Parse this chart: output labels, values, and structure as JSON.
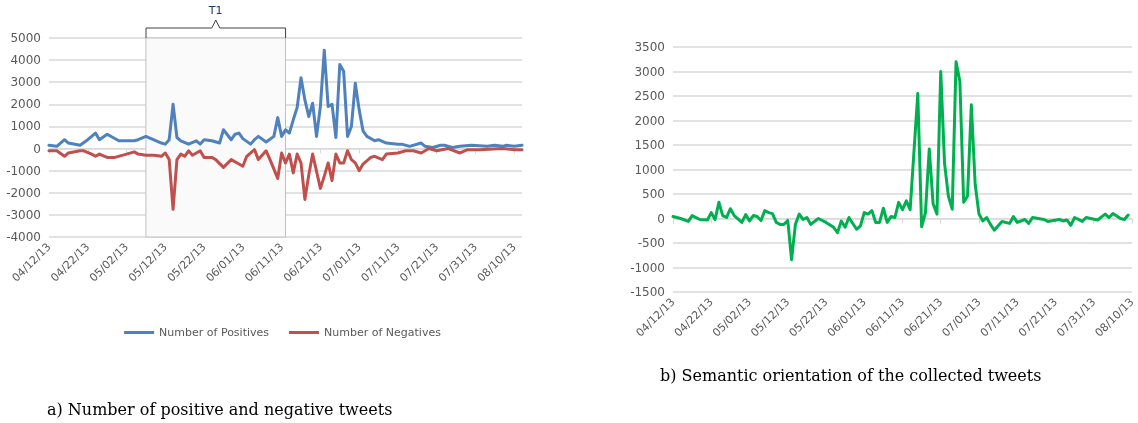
{
  "chart_data": [
    {
      "type": "line",
      "legend": "bottom",
      "grid": "y",
      "marker": "none",
      "line_style": "solid",
      "xlim": [
        "--04-12",
        "--08-12"
      ],
      "xticks": [
        {
          "value": "--04-12",
          "label": "04/12/13"
        },
        {
          "value": "--04-22",
          "label": "04/22/13"
        },
        {
          "value": "--05-02",
          "label": "05/02/13"
        },
        {
          "value": "--05-12",
          "label": "05/12/13"
        },
        {
          "value": "--05-22",
          "label": "05/22/13"
        },
        {
          "value": "--06-01",
          "label": "06/01/13"
        },
        {
          "value": "--06-11",
          "label": "06/11/13"
        },
        {
          "value": "--06-21",
          "label": "06/21/13"
        },
        {
          "value": "--07-01",
          "label": "07/01/13"
        },
        {
          "value": "--07-11",
          "label": "07/11/13"
        },
        {
          "value": "--07-21",
          "label": "07/21/13"
        },
        {
          "value": "--07-31",
          "label": "07/31/13"
        },
        {
          "value": "--08-10",
          "label": "08/10/13"
        }
      ],
      "ylim": [
        -4000,
        5000
      ],
      "yticks": [
        -4000,
        -3000,
        -2000,
        -1000,
        0,
        1000,
        2000,
        3000,
        4000,
        5000
      ],
      "bands": [
        {
          "axis": "x",
          "from": "--05-07",
          "to": "--06-12",
          "label": "T1",
          "color": "#fafafa"
        }
      ],
      "annotations": [
        "a) Number of positive and negative tweets"
      ],
      "series": [
        {
          "name": "Number of Positives",
          "color": "#4f81bd",
          "x": [
            "--04-12",
            "--04-14",
            "--04-16",
            "--04-17",
            "--04-20",
            "--04-22",
            "--04-24",
            "--04-25",
            "--04-27",
            "--04-30",
            "--05-04",
            "--05-05",
            "--05-07",
            "--05-11",
            "--05-12",
            "--05-13",
            "--05-14",
            "--05-15",
            "--05-16",
            "--05-18",
            "--05-20",
            "--05-21",
            "--05-22",
            "--05-24",
            "--05-26",
            "--05-27",
            "--05-29",
            "--05-30",
            "--05-31",
            "--06-01",
            "--06-03",
            "--06-04",
            "--06-05",
            "--06-07",
            "--06-09",
            "--06-10",
            "--06-11",
            "--06-12",
            "--06-13",
            "--06-14",
            "--06-15",
            "--06-16",
            "--06-17",
            "--06-18",
            "--06-19",
            "--06-20",
            "--06-21",
            "--06-22",
            "--06-23",
            "--06-24",
            "--06-25",
            "--06-26",
            "--06-27",
            "--06-28",
            "--06-29",
            "--06-30",
            "--07-01",
            "--07-02",
            "--07-03",
            "--07-05",
            "--07-06",
            "--07-08",
            "--07-11",
            "--07-12",
            "--07-14",
            "--07-17",
            "--07-18",
            "--07-20",
            "--07-22",
            "--07-23",
            "--07-25",
            "--07-27",
            "--07-30",
            "--08-03",
            "--08-05",
            "--08-07",
            "--08-08",
            "--08-10",
            "--08-12"
          ],
          "values": [
            150,
            100,
            400,
            250,
            150,
            400,
            700,
            400,
            650,
            350,
            350,
            400,
            550,
            250,
            200,
            400,
            2000,
            500,
            350,
            200,
            350,
            200,
            400,
            350,
            250,
            850,
            400,
            650,
            700,
            450,
            200,
            400,
            550,
            300,
            550,
            1400,
            550,
            850,
            700,
            1300,
            1850,
            3200,
            2200,
            1450,
            2050,
            550,
            1900,
            4450,
            1900,
            2000,
            500,
            3800,
            3500,
            550,
            1000,
            2950,
            1750,
            800,
            550,
            350,
            400,
            250,
            200,
            200,
            100,
            250,
            100,
            50,
            150,
            150,
            50,
            100,
            150,
            100,
            150,
            100,
            150,
            100,
            150
          ]
        },
        {
          "name": "Number of Negatives",
          "color": "#c0504d",
          "x": [
            "--04-12",
            "--04-14",
            "--04-16",
            "--04-17",
            "--04-20",
            "--04-21",
            "--04-23",
            "--04-24",
            "--04-25",
            "--04-27",
            "--04-29",
            "--05-02",
            "--05-04",
            "--05-05",
            "--05-07",
            "--05-09",
            "--05-11",
            "--05-12",
            "--05-13",
            "--05-14",
            "--05-15",
            "--05-16",
            "--05-17",
            "--05-18",
            "--05-19",
            "--05-21",
            "--05-22",
            "--05-24",
            "--05-25",
            "--05-27",
            "--05-29",
            "--05-31",
            "--06-01",
            "--06-02",
            "--06-04",
            "--06-05",
            "--06-07",
            "--06-08",
            "--06-10",
            "--06-11",
            "--06-12",
            "--06-13",
            "--06-14",
            "--06-15",
            "--06-16",
            "--06-17",
            "--06-18",
            "--06-19",
            "--06-21",
            "--06-22",
            "--06-23",
            "--06-24",
            "--06-25",
            "--06-26",
            "--06-27",
            "--06-28",
            "--06-29",
            "--06-30",
            "--07-01",
            "--07-02",
            "--07-04",
            "--07-05",
            "--07-07",
            "--07-08",
            "--07-11",
            "--07-13",
            "--07-15",
            "--07-17",
            "--07-19",
            "--07-21",
            "--07-24",
            "--07-27",
            "--07-29",
            "--08-01",
            "--08-07",
            "--08-10",
            "--08-12"
          ],
          "values": [
            -100,
            -100,
            -350,
            -200,
            -100,
            -100,
            -250,
            -350,
            -250,
            -400,
            -400,
            -250,
            -150,
            -250,
            -300,
            -300,
            -350,
            -200,
            -500,
            -2750,
            -500,
            -250,
            -350,
            -100,
            -300,
            -100,
            -400,
            -400,
            -500,
            -850,
            -500,
            -700,
            -800,
            -350,
            -50,
            -500,
            -100,
            -500,
            -1350,
            -200,
            -650,
            -250,
            -1100,
            -250,
            -650,
            -2300,
            -1200,
            -250,
            -1800,
            -1250,
            -650,
            -1450,
            -250,
            -650,
            -650,
            -100,
            -500,
            -650,
            -1000,
            -700,
            -400,
            -350,
            -500,
            -250,
            -200,
            -100,
            -100,
            -200,
            0,
            -100,
            0,
            -200,
            -50,
            -50,
            0,
            -50,
            -50
          ]
        }
      ]
    },
    {
      "type": "line",
      "grid": "y",
      "marker": "none",
      "line_style": "solid",
      "xlim": [
        "--04-12",
        "--08-10"
      ],
      "xticks": [
        {
          "value": "--04-12",
          "label": "04/12/13"
        },
        {
          "value": "--04-22",
          "label": "04/22/13"
        },
        {
          "value": "--05-02",
          "label": "05/02/13"
        },
        {
          "value": "--05-12",
          "label": "05/12/13"
        },
        {
          "value": "--05-22",
          "label": "05/22/13"
        },
        {
          "value": "--06-01",
          "label": "06/01/13"
        },
        {
          "value": "--06-11",
          "label": "06/11/13"
        },
        {
          "value": "--06-21",
          "label": "06/21/13"
        },
        {
          "value": "--07-01",
          "label": "07/01/13"
        },
        {
          "value": "--07-11",
          "label": "07/11/13"
        },
        {
          "value": "--07-21",
          "label": "07/21/13"
        },
        {
          "value": "--07-31",
          "label": "07/31/13"
        },
        {
          "value": "--08-10",
          "label": "08/10/13"
        }
      ],
      "ylim": [
        -1500,
        3500
      ],
      "yticks": [
        -1500,
        -1000,
        -500,
        0,
        500,
        1000,
        1500,
        2000,
        2500,
        3000,
        3500
      ],
      "annotations": [
        "b) Semantic orientation of the collected tweets"
      ],
      "series": [
        {
          "color": "#00b050",
          "x": [
            "--04-12",
            "--04-14",
            "--04-16",
            "--04-17",
            "--04-19",
            "--04-21",
            "--04-22",
            "--04-23",
            "--04-24",
            "--04-25",
            "--04-26",
            "--04-27",
            "--04-28",
            "--04-30",
            "--05-01",
            "--05-02",
            "--05-03",
            "--05-04",
            "--05-05",
            "--05-06",
            "--05-07",
            "--05-08",
            "--05-09",
            "--05-10",
            "--05-11",
            "--05-12",
            "--05-13",
            "--05-14",
            "--05-15",
            "--05-16",
            "--05-17",
            "--05-18",
            "--05-20",
            "--05-22",
            "--05-24",
            "--05-25",
            "--05-26",
            "--05-27",
            "--05-28",
            "--05-30",
            "--05-31",
            "--06-01",
            "--06-02",
            "--06-03",
            "--06-04",
            "--06-05",
            "--06-06",
            "--06-07",
            "--06-08",
            "--06-09",
            "--06-10",
            "--06-11",
            "--06-12",
            "--06-13",
            "--06-15",
            "--06-16",
            "--06-17",
            "--06-18",
            "--06-19",
            "--06-20",
            "--06-21",
            "--06-22",
            "--06-23",
            "--06-24",
            "--06-25",
            "--06-26",
            "--06-27",
            "--06-28",
            "--06-29",
            "--06-30",
            "--07-01",
            "--07-02",
            "--07-03",
            "--07-04",
            "--07-05",
            "--07-07",
            "--07-09",
            "--07-10",
            "--07-11",
            "--07-13",
            "--07-14",
            "--07-15",
            "--07-18",
            "--07-19",
            "--07-22",
            "--07-23",
            "--07-24",
            "--07-25",
            "--07-26",
            "--07-28",
            "--07-29",
            "--08-01",
            "--08-03",
            "--08-04",
            "--08-05",
            "--08-07",
            "--08-08",
            "--08-09"
          ],
          "values": [
            40,
            0,
            -60,
            60,
            -20,
            -30,
            120,
            -20,
            330,
            60,
            20,
            200,
            60,
            -80,
            80,
            -50,
            60,
            40,
            -40,
            160,
            120,
            100,
            -80,
            -120,
            -120,
            -40,
            -840,
            -120,
            90,
            -20,
            20,
            -120,
            0,
            -80,
            -180,
            -290,
            -50,
            -180,
            20,
            -220,
            -150,
            120,
            90,
            160,
            -80,
            -80,
            210,
            -80,
            40,
            20,
            330,
            180,
            360,
            180,
            2550,
            -170,
            120,
            1420,
            300,
            90,
            3000,
            1120,
            460,
            190,
            3200,
            2800,
            330,
            460,
            2320,
            700,
            90,
            -50,
            20,
            -120,
            -240,
            -60,
            -100,
            40,
            -80,
            -20,
            -100,
            20,
            -20,
            -60,
            -20,
            -50,
            -30,
            -140,
            20,
            -60,
            20,
            -30,
            90,
            20,
            100,
            0,
            -20,
            70
          ]
        }
      ]
    }
  ]
}
